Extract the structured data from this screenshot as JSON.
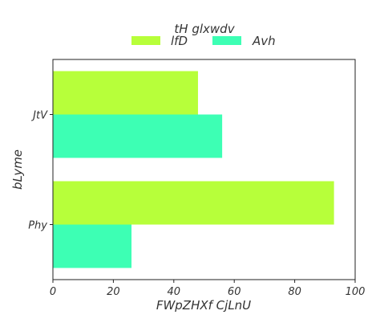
{
  "chart_data": {
    "type": "bar",
    "orientation": "horizontal",
    "categories": [
      "JtV",
      "Phy"
    ],
    "series": [
      {
        "name": "lfD",
        "values": [
          48,
          93
        ],
        "color": "#b7ff3a"
      },
      {
        "name": "Avh",
        "values": [
          56,
          26
        ],
        "color": "#3dffb4"
      }
    ],
    "xlabel": "FWpZHXf CjLnU",
    "ylabel": "bLyme",
    "xlim": [
      0,
      100
    ],
    "xticks": [
      "0",
      "20",
      "40",
      "60",
      "80",
      "100"
    ],
    "legend": {
      "title": "tH glxwdv",
      "placement": "top-center",
      "columns": 2
    },
    "grid": false
  }
}
